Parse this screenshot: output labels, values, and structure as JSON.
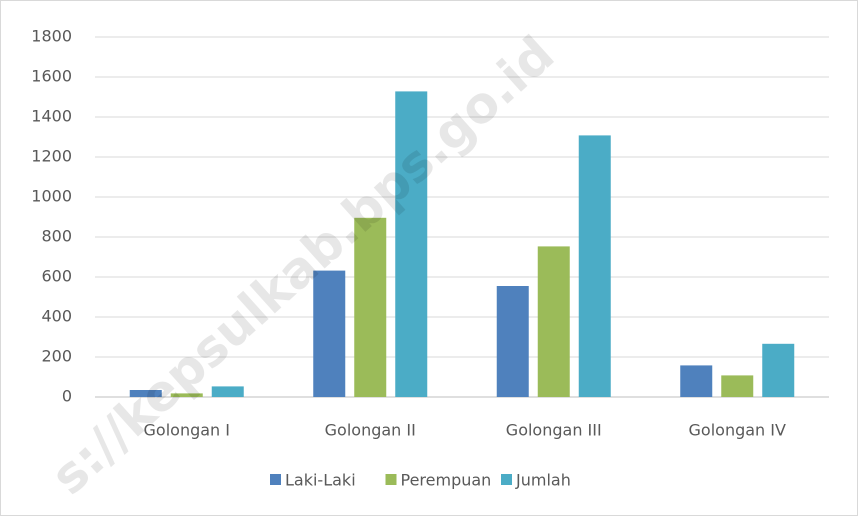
{
  "chart_data": {
    "type": "bar",
    "categories": [
      "Golongan I",
      "Golongan II",
      "Golongan III",
      "Golongan IV"
    ],
    "series": [
      {
        "name": "Laki-Laki",
        "color": "#4f81bd",
        "values": [
          35,
          632,
          555,
          158
        ]
      },
      {
        "name": "Perempuan",
        "color": "#9bbb59",
        "values": [
          18,
          896,
          753,
          108
        ]
      },
      {
        "name": "Jumlah",
        "color": "#4bacc6",
        "values": [
          53,
          1528,
          1308,
          266
        ]
      }
    ],
    "ylim": [
      0,
      1800
    ],
    "yticks": [
      0,
      200,
      400,
      600,
      800,
      1000,
      1200,
      1400,
      1600,
      1800
    ],
    "grid": true,
    "legend": "bottom",
    "watermark": "s://kepsulkab.bps.go.id"
  }
}
